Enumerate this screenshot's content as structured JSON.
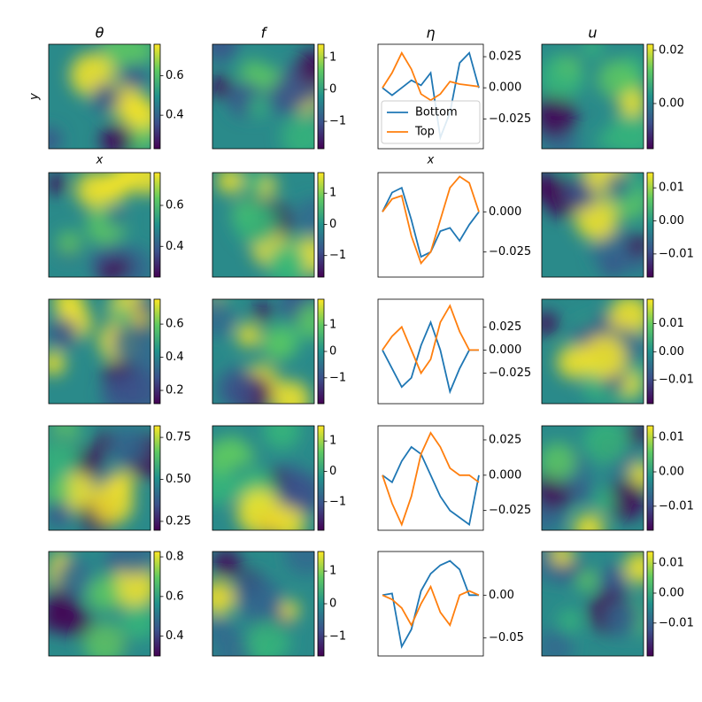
{
  "chart_data": [
    {
      "type": "heatmap",
      "title": "θ",
      "xlabel": "x",
      "ylabel": "y",
      "clim": [
        0.23,
        0.76
      ],
      "cticks": [
        0.4,
        0.6
      ]
    },
    {
      "type": "heatmap",
      "title": "f",
      "clim": [
        -1.86,
        1.42
      ],
      "cticks": [
        {
          "value": -1,
          "label": "−1"
        },
        0,
        1
      ]
    },
    {
      "type": "line",
      "title": "η",
      "xlabel": "x",
      "ylim": [
        -0.049,
        0.035
      ],
      "yticks": [
        {
          "value": -0.025,
          "label": "−0.025"
        },
        {
          "value": 0,
          "label": "0.000"
        },
        0.025
      ],
      "legend": "lower center",
      "series": [
        {
          "name": "Bottom",
          "color": "#1f77b4",
          "values": [
            0,
            -0.006,
            0.0,
            0.006,
            0.002,
            0.012,
            -0.04,
            -0.02,
            0.02,
            0.028,
            0
          ]
        },
        {
          "name": "Top",
          "color": "#ff7f0e",
          "values": [
            0,
            0.012,
            0.028,
            0.015,
            -0.005,
            -0.01,
            -0.005,
            0.005,
            0.003,
            0.002,
            0.001
          ]
        }
      ]
    },
    {
      "type": "heatmap",
      "title": "u",
      "clim": [
        -0.017,
        0.0223
      ],
      "cticks": [
        {
          "value": 0,
          "label": "0.00"
        },
        0.02
      ]
    },
    {
      "type": "heatmap",
      "clim": [
        0.25,
        0.76
      ],
      "cticks": [
        0.4,
        0.6
      ]
    },
    {
      "type": "heatmap",
      "clim": [
        -1.69,
        1.66
      ],
      "cticks": [
        {
          "value": -1,
          "label": "−1"
        },
        0,
        1
      ]
    },
    {
      "type": "line",
      "ylim": [
        -0.0406,
        0.0244
      ],
      "yticks": [
        {
          "value": -0.025,
          "label": "−0.025"
        },
        {
          "value": 0,
          "label": "0.000"
        }
      ],
      "series": [
        {
          "color": "#1f77b4",
          "values": [
            0,
            0.012,
            0.015,
            -0.005,
            -0.028,
            -0.025,
            -0.012,
            -0.01,
            -0.018,
            -0.008,
            0
          ]
        },
        {
          "color": "#ff7f0e",
          "values": [
            0,
            0.008,
            0.01,
            -0.015,
            -0.032,
            -0.025,
            -0.005,
            0.015,
            0.022,
            0.018,
            0
          ]
        }
      ]
    },
    {
      "type": "heatmap",
      "clim": [
        -0.017,
        0.0146
      ],
      "cticks": [
        {
          "value": -0.01,
          "label": "−0.01"
        },
        {
          "value": 0,
          "label": "0.00"
        },
        0.01
      ]
    },
    {
      "type": "heatmap",
      "clim": [
        0.12,
        0.75
      ],
      "cticks": [
        0.2,
        0.4,
        0.6
      ]
    },
    {
      "type": "heatmap",
      "clim": [
        -1.98,
        1.98
      ],
      "cticks": [
        {
          "value": -1,
          "label": "−1"
        },
        0,
        1
      ]
    },
    {
      "type": "line",
      "ylim": [
        -0.058,
        0.055
      ],
      "yticks": [
        {
          "value": -0.025,
          "label": "−0.025"
        },
        {
          "value": 0,
          "label": "0.000"
        },
        0.025
      ],
      "series": [
        {
          "color": "#1f77b4",
          "values": [
            0,
            -0.02,
            -0.04,
            -0.03,
            0.005,
            0.03,
            0.0,
            -0.045,
            -0.02,
            0.0,
            0
          ]
        },
        {
          "color": "#ff7f0e",
          "values": [
            0,
            0.015,
            0.025,
            0.0,
            -0.025,
            -0.01,
            0.03,
            0.048,
            0.02,
            0.0,
            0
          ]
        }
      ]
    },
    {
      "type": "heatmap",
      "clim": [
        -0.0184,
        0.0186
      ],
      "cticks": [
        {
          "value": -0.01,
          "label": "−0.01"
        },
        {
          "value": 0,
          "label": "0.00"
        },
        0.01
      ]
    },
    {
      "type": "heatmap",
      "clim": [
        0.197,
        0.819
      ],
      "cticks": [
        0.25,
        {
          "value": 0.5,
          "label": "0.50"
        },
        0.75
      ]
    },
    {
      "type": "heatmap",
      "clim": [
        -1.94,
        1.5
      ],
      "cticks": [
        {
          "value": -1,
          "label": "−1"
        },
        0,
        1
      ]
    },
    {
      "type": "line",
      "ylim": [
        -0.039,
        0.035
      ],
      "yticks": [
        {
          "value": -0.025,
          "label": "−0.025"
        },
        {
          "value": 0,
          "label": "0.000"
        },
        0.025
      ],
      "series": [
        {
          "color": "#1f77b4",
          "values": [
            0,
            -0.005,
            0.01,
            0.02,
            0.015,
            0.0,
            -0.015,
            -0.025,
            -0.03,
            -0.035,
            0
          ]
        },
        {
          "color": "#ff7f0e",
          "values": [
            0,
            -0.02,
            -0.035,
            -0.015,
            0.015,
            0.03,
            0.02,
            0.005,
            0.0,
            0.0,
            -0.005
          ]
        }
      ]
    },
    {
      "type": "heatmap",
      "clim": [
        -0.017,
        0.0134
      ],
      "cticks": [
        {
          "value": -0.01,
          "label": "−0.01"
        },
        {
          "value": 0,
          "label": "0.00"
        },
        0.01
      ]
    },
    {
      "type": "heatmap",
      "clim": [
        0.3,
        0.827
      ],
      "cticks": [
        0.4,
        0.6,
        0.8
      ]
    },
    {
      "type": "heatmap",
      "clim": [
        -1.6,
        1.6
      ],
      "cticks": [
        {
          "value": -1,
          "label": "−1"
        },
        0,
        1
      ]
    },
    {
      "type": "line",
      "ylim": [
        -0.071,
        0.051
      ],
      "yticks": [
        {
          "value": -0.05,
          "label": "−0.05"
        },
        {
          "value": 0,
          "label": "0.00"
        }
      ],
      "series": [
        {
          "color": "#1f77b4",
          "values": [
            0,
            0.002,
            -0.06,
            -0.04,
            0.005,
            0.025,
            0.035,
            0.04,
            0.03,
            0.0,
            0.0
          ]
        },
        {
          "color": "#ff7f0e",
          "values": [
            0,
            -0.005,
            -0.015,
            -0.035,
            -0.01,
            0.01,
            -0.02,
            -0.035,
            0.0,
            0.005,
            0
          ]
        }
      ]
    },
    {
      "type": "heatmap",
      "clim": [
        -0.021,
        0.0139
      ],
      "cticks": [
        {
          "value": -0.01,
          "label": "−0.01"
        },
        {
          "value": 0,
          "label": "0.00"
        },
        0.01
      ]
    }
  ]
}
